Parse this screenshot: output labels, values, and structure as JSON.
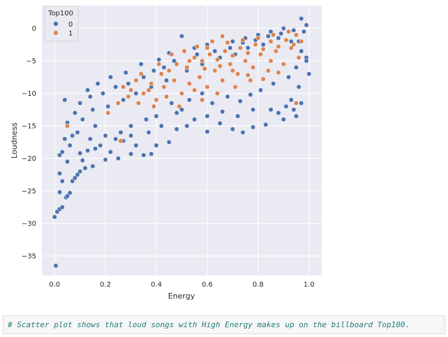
{
  "chart_data": {
    "type": "scatter",
    "xlabel": "Energy",
    "ylabel": "Loudness",
    "xlim": [
      -0.05,
      1.05
    ],
    "ylim": [
      -38,
      3.5
    ],
    "xticks": [
      "0.0",
      "0.2",
      "0.4",
      "0.6",
      "0.8",
      "1.0"
    ],
    "yticks": [
      "0",
      "−5",
      "−10",
      "−15",
      "−20",
      "−25",
      "−30",
      "−35"
    ],
    "grid": true,
    "legend": {
      "title": "Top100",
      "placement": "top-left"
    },
    "series": [
      {
        "name": "0",
        "color": "#4c72b0",
        "points": [
          [
            0.005,
            -36.5
          ],
          [
            0.0,
            -29.0
          ],
          [
            0.01,
            -28.2
          ],
          [
            0.02,
            -27.8
          ],
          [
            0.03,
            -27.5
          ],
          [
            0.045,
            -26.0
          ],
          [
            0.05,
            -25.8
          ],
          [
            0.06,
            -25.3
          ],
          [
            0.02,
            -25.2
          ],
          [
            0.07,
            -23.5
          ],
          [
            0.03,
            -23.5
          ],
          [
            0.08,
            -23.0
          ],
          [
            0.09,
            -22.5
          ],
          [
            0.02,
            -22.3
          ],
          [
            0.1,
            -22.0
          ],
          [
            0.12,
            -21.5
          ],
          [
            0.15,
            -21.2
          ],
          [
            0.05,
            -20.5
          ],
          [
            0.11,
            -20.3
          ],
          [
            0.2,
            -20.2
          ],
          [
            0.25,
            -20.0
          ],
          [
            0.22,
            -19.0
          ],
          [
            0.3,
            -19.3
          ],
          [
            0.35,
            -19.5
          ],
          [
            0.38,
            -19.3
          ],
          [
            0.1,
            -19.2
          ],
          [
            0.02,
            -19.5
          ],
          [
            0.03,
            -19.0
          ],
          [
            0.06,
            -18.0
          ],
          [
            0.13,
            -18.8
          ],
          [
            0.16,
            -18.5
          ],
          [
            0.32,
            -18.0
          ],
          [
            0.4,
            -18.0
          ],
          [
            0.45,
            -17.5
          ],
          [
            0.04,
            -17.0
          ],
          [
            0.07,
            -16.5
          ],
          [
            0.27,
            -17.3
          ],
          [
            0.48,
            -15.5
          ],
          [
            0.52,
            -15.0
          ],
          [
            0.6,
            -15.9
          ],
          [
            0.65,
            -14.6
          ],
          [
            0.7,
            -15.5
          ],
          [
            0.74,
            -16.0
          ],
          [
            0.78,
            -15.2
          ],
          [
            0.83,
            -14.8
          ],
          [
            0.9,
            -14.0
          ],
          [
            0.95,
            -13.5
          ],
          [
            0.94,
            -12.5
          ],
          [
            0.88,
            -13.0
          ],
          [
            0.97,
            -11.5
          ],
          [
            0.04,
            -11.0
          ],
          [
            0.13,
            -9.5
          ],
          [
            0.17,
            -8.5
          ],
          [
            0.22,
            -7.5
          ],
          [
            0.28,
            -6.8
          ],
          [
            0.34,
            -5.5
          ],
          [
            0.41,
            -4.8
          ],
          [
            0.45,
            -3.8
          ],
          [
            0.5,
            -1.2
          ],
          [
            0.55,
            -3.0
          ],
          [
            0.6,
            -2.5
          ],
          [
            0.7,
            -2.0
          ],
          [
            0.75,
            -1.5
          ],
          [
            0.8,
            -1.0
          ],
          [
            0.85,
            -0.5
          ],
          [
            0.9,
            0.0
          ],
          [
            0.97,
            1.5
          ],
          [
            0.99,
            0.5
          ],
          [
            0.98,
            -0.5
          ],
          [
            0.96,
            -2.0
          ],
          [
            0.99,
            -4.5
          ],
          [
            1.0,
            -7.0
          ],
          [
            0.96,
            -9.0
          ],
          [
            0.93,
            -11.0
          ],
          [
            0.91,
            -12.0
          ],
          [
            0.85,
            -12.5
          ],
          [
            0.78,
            -12.5
          ],
          [
            0.72,
            -13.5
          ],
          [
            0.66,
            -12.8
          ],
          [
            0.6,
            -13.5
          ],
          [
            0.55,
            -14.0
          ],
          [
            0.5,
            -12.5
          ],
          [
            0.46,
            -11.5
          ],
          [
            0.4,
            -13.5
          ],
          [
            0.36,
            -14.0
          ],
          [
            0.3,
            -15.0
          ],
          [
            0.26,
            -16.0
          ],
          [
            0.2,
            -16.5
          ],
          [
            0.16,
            -15.0
          ],
          [
            0.11,
            -14.0
          ],
          [
            0.08,
            -13.0
          ],
          [
            0.05,
            -14.5
          ],
          [
            0.09,
            -16.0
          ],
          [
            0.14,
            -17.0
          ],
          [
            0.18,
            -18.0
          ],
          [
            0.24,
            -17.0
          ],
          [
            0.3,
            -16.5
          ],
          [
            0.37,
            -16.0
          ],
          [
            0.42,
            -15.0
          ],
          [
            0.48,
            -13.0
          ],
          [
            0.53,
            -11.0
          ],
          [
            0.58,
            -10.0
          ],
          [
            0.62,
            -11.5
          ],
          [
            0.68,
            -10.5
          ],
          [
            0.73,
            -11.2
          ],
          [
            0.77,
            -10.2
          ],
          [
            0.81,
            -9.5
          ],
          [
            0.86,
            -8.5
          ],
          [
            0.92,
            -7.5
          ],
          [
            0.95,
            -6.0
          ],
          [
            0.99,
            -5.0
          ],
          [
            0.97,
            -3.5
          ],
          [
            0.93,
            -2.0
          ],
          [
            0.88,
            -1.5
          ],
          [
            0.82,
            -2.5
          ],
          [
            0.76,
            -3.0
          ],
          [
            0.71,
            -4.0
          ],
          [
            0.65,
            -4.5
          ],
          [
            0.58,
            -5.5
          ],
          [
            0.52,
            -6.5
          ],
          [
            0.44,
            -8.0
          ],
          [
            0.38,
            -9.0
          ],
          [
            0.32,
            -10.0
          ],
          [
            0.27,
            -11.0
          ],
          [
            0.21,
            -12.0
          ],
          [
            0.15,
            -12.5
          ],
          [
            0.1,
            -11.5
          ],
          [
            0.14,
            -10.5
          ],
          [
            0.19,
            -10.0
          ],
          [
            0.24,
            -9.0
          ],
          [
            0.29,
            -8.5
          ],
          [
            0.35,
            -7.5
          ],
          [
            0.39,
            -6.5
          ],
          [
            0.43,
            -6.0
          ],
          [
            0.47,
            -5.0
          ],
          [
            0.56,
            -4.0
          ],
          [
            0.63,
            -3.5
          ],
          [
            0.69,
            -3.0
          ],
          [
            0.74,
            -2.2
          ],
          [
            0.79,
            -1.8
          ],
          [
            0.84,
            -1.2
          ],
          [
            0.89,
            -0.8
          ],
          [
            0.94,
            -0.3
          ]
        ]
      },
      {
        "name": "1",
        "color": "#dd8452",
        "points": [
          [
            0.95,
            -11.5
          ],
          [
            0.05,
            -15.0
          ],
          [
            0.26,
            -17.3
          ],
          [
            0.21,
            -13.0
          ],
          [
            0.33,
            -11.5
          ],
          [
            0.27,
            -9.0
          ],
          [
            0.32,
            -8.0
          ],
          [
            0.38,
            -8.5
          ],
          [
            0.42,
            -7.0
          ],
          [
            0.45,
            -6.5
          ],
          [
            0.48,
            -5.5
          ],
          [
            0.52,
            -6.0
          ],
          [
            0.55,
            -4.5
          ],
          [
            0.58,
            -5.0
          ],
          [
            0.61,
            -4.0
          ],
          [
            0.64,
            -4.8
          ],
          [
            0.67,
            -3.5
          ],
          [
            0.7,
            -4.2
          ],
          [
            0.73,
            -3.0
          ],
          [
            0.76,
            -3.8
          ],
          [
            0.79,
            -2.5
          ],
          [
            0.82,
            -3.2
          ],
          [
            0.85,
            -2.0
          ],
          [
            0.88,
            -2.8
          ],
          [
            0.91,
            -1.8
          ],
          [
            0.94,
            -2.5
          ],
          [
            0.97,
            -2.0
          ],
          [
            0.62,
            -2.0
          ],
          [
            0.66,
            -1.2
          ],
          [
            0.85,
            -5.0
          ],
          [
            0.78,
            -6.0
          ],
          [
            0.72,
            -7.0
          ],
          [
            0.66,
            -8.0
          ],
          [
            0.6,
            -9.0
          ],
          [
            0.55,
            -9.5
          ],
          [
            0.5,
            -10.0
          ],
          [
            0.44,
            -10.5
          ],
          [
            0.4,
            -11.0
          ],
          [
            0.35,
            -10.0
          ],
          [
            0.3,
            -9.5
          ],
          [
            0.57,
            -7.5
          ],
          [
            0.63,
            -6.5
          ],
          [
            0.69,
            -5.5
          ],
          [
            0.75,
            -5.0
          ],
          [
            0.81,
            -4.0
          ],
          [
            0.87,
            -3.5
          ],
          [
            0.93,
            -3.0
          ],
          [
            0.96,
            -4.5
          ],
          [
            0.9,
            -5.5
          ],
          [
            0.84,
            -6.5
          ],
          [
            0.77,
            -8.0
          ],
          [
            0.71,
            -9.0
          ],
          [
            0.64,
            -10.0
          ],
          [
            0.58,
            -11.0
          ],
          [
            0.53,
            -8.5
          ],
          [
            0.47,
            -8.0
          ],
          [
            0.43,
            -9.0
          ],
          [
            0.37,
            -9.5
          ],
          [
            0.34,
            -7.0
          ],
          [
            0.41,
            -5.5
          ],
          [
            0.46,
            -4.0
          ],
          [
            0.51,
            -3.5
          ],
          [
            0.56,
            -2.8
          ],
          [
            0.6,
            -3.0
          ],
          [
            0.68,
            -2.2
          ],
          [
            0.74,
            -1.8
          ],
          [
            0.8,
            -1.5
          ],
          [
            0.86,
            -1.0
          ],
          [
            0.92,
            -0.5
          ],
          [
            0.95,
            -1.0
          ],
          [
            0.53,
            -5.0
          ],
          [
            0.59,
            -6.2
          ],
          [
            0.65,
            -5.8
          ],
          [
            0.7,
            -6.5
          ],
          [
            0.76,
            -7.2
          ],
          [
            0.82,
            -7.8
          ],
          [
            0.88,
            -6.8
          ],
          [
            0.29,
            -10.5
          ],
          [
            0.25,
            -11.5
          ],
          [
            0.39,
            -12.0
          ],
          [
            0.49,
            -12.0
          ]
        ]
      }
    ]
  },
  "comment": "# Scatter plot shows that loud songs with High Energy makes up on the billboard Top100."
}
